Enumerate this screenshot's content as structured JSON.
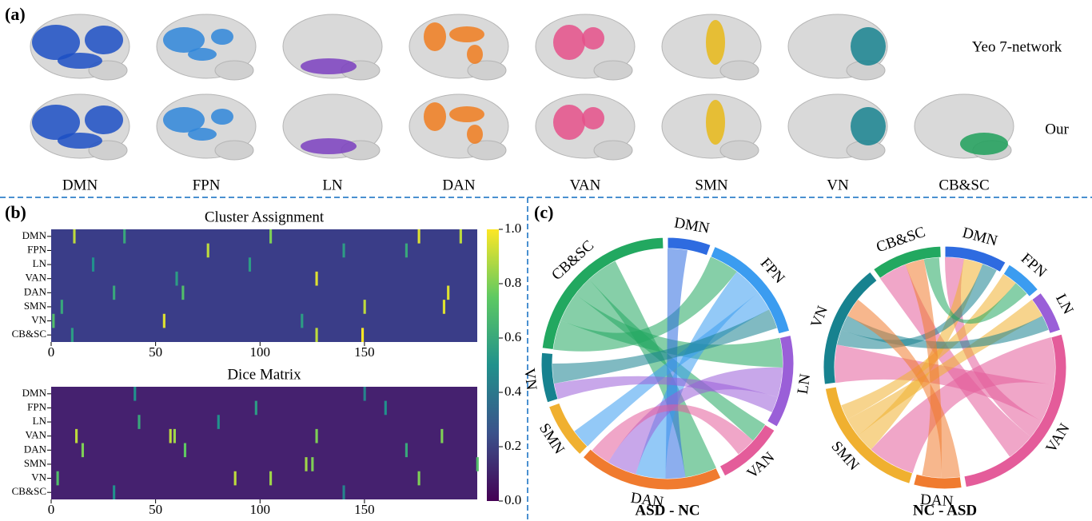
{
  "panel_a": {
    "label": "(a)",
    "rows": [
      "Yeo 7-network",
      "Our"
    ],
    "networks": [
      {
        "name": "DMN",
        "color": "#1c4fc4"
      },
      {
        "name": "FPN",
        "color": "#2f86d9"
      },
      {
        "name": "LN",
        "color": "#7b3fbf"
      },
      {
        "name": "DAN",
        "color": "#f07c1f"
      },
      {
        "name": "VAN",
        "color": "#e5508a"
      },
      {
        "name": "SMN",
        "color": "#e8b818"
      },
      {
        "name": "VN",
        "color": "#17828f"
      },
      {
        "name": "CB&SC",
        "color": "#1fa05a"
      }
    ]
  },
  "panel_b": {
    "label": "(b)",
    "heatmaps": [
      {
        "title": "Cluster Assignment",
        "rows": [
          "DMN",
          "FPN",
          "LN",
          "VAN",
          "DAN",
          "SMN",
          "VN",
          "CB&SC"
        ],
        "xlim": [
          0,
          204
        ],
        "xticks": [
          0,
          50,
          100,
          150
        ],
        "cells": [
          [
            0,
            11,
            0.9
          ],
          [
            0,
            105,
            0.8
          ],
          [
            0,
            176,
            0.95
          ],
          [
            0,
            196,
            0.9
          ],
          [
            0,
            35,
            0.6
          ],
          [
            1,
            75,
            0.9
          ],
          [
            1,
            170,
            0.6
          ],
          [
            1,
            140,
            0.55
          ],
          [
            2,
            20,
            0.5
          ],
          [
            2,
            95,
            0.55
          ],
          [
            3,
            127,
            0.95
          ],
          [
            3,
            60,
            0.55
          ],
          [
            4,
            63,
            0.7
          ],
          [
            4,
            190,
            0.95
          ],
          [
            4,
            30,
            0.6
          ],
          [
            5,
            150,
            0.9
          ],
          [
            5,
            188,
            0.95
          ],
          [
            5,
            5,
            0.6
          ],
          [
            6,
            54,
            0.95
          ],
          [
            6,
            1,
            0.7
          ],
          [
            6,
            120,
            0.55
          ],
          [
            7,
            127,
            0.9
          ],
          [
            7,
            149,
            1.0
          ],
          [
            7,
            10,
            0.55
          ]
        ]
      },
      {
        "title": "Dice Matrix",
        "rows": [
          "DMN",
          "FPN",
          "LN",
          "VAN",
          "DAN",
          "SMN",
          "VN",
          "CB&SC"
        ],
        "xlim": [
          0,
          204
        ],
        "xticks": [
          0,
          50,
          100,
          150
        ],
        "cells": [
          [
            0,
            40,
            0.5
          ],
          [
            0,
            150,
            0.45
          ],
          [
            1,
            98,
            0.55
          ],
          [
            1,
            160,
            0.5
          ],
          [
            2,
            42,
            0.6
          ],
          [
            2,
            80,
            0.5
          ],
          [
            3,
            12,
            0.9
          ],
          [
            3,
            57,
            0.9
          ],
          [
            3,
            59,
            0.85
          ],
          [
            3,
            127,
            0.8
          ],
          [
            3,
            187,
            0.8
          ],
          [
            4,
            15,
            0.8
          ],
          [
            4,
            64,
            0.75
          ],
          [
            4,
            170,
            0.6
          ],
          [
            5,
            122,
            0.85
          ],
          [
            5,
            125,
            0.8
          ],
          [
            5,
            204,
            0.7
          ],
          [
            6,
            105,
            0.85
          ],
          [
            6,
            176,
            0.8
          ],
          [
            6,
            88,
            0.9
          ],
          [
            6,
            3,
            0.7
          ],
          [
            7,
            30,
            0.5
          ],
          [
            7,
            140,
            0.45
          ]
        ]
      }
    ],
    "colorbar": {
      "lim": [
        0,
        1
      ],
      "ticks": [
        {
          "value": 0,
          "label": "0.0"
        },
        {
          "value": 0.2,
          "label": "0.2"
        },
        {
          "value": 0.4,
          "label": "0.4"
        },
        {
          "value": 0.6,
          "label": "0.6"
        },
        {
          "value": 0.8,
          "label": "0.8"
        },
        {
          "value": 1,
          "label": "1.0"
        }
      ]
    }
  },
  "panel_c": {
    "label": "(c)",
    "chords": [
      {
        "title": "ASD - NC",
        "segments": [
          {
            "name": "DMN",
            "color": "#2e6be0",
            "size": 20
          },
          {
            "name": "FPN",
            "color": "#3b9cf0",
            "size": 53
          },
          {
            "name": "LN",
            "color": "#9a5fd8",
            "size": 43
          },
          {
            "name": "VAN",
            "color": "#e45c9a",
            "size": 31
          },
          {
            "name": "DAN",
            "color": "#f07b2f",
            "size": 67
          },
          {
            "name": "SMN",
            "color": "#f0b030",
            "size": 26
          },
          {
            "name": "VN",
            "color": "#17828f",
            "size": 23
          },
          {
            "name": "CB&SC",
            "color": "#22a860",
            "size": 81
          }
        ],
        "ribbons": [
          [
            7,
            1,
            15
          ],
          [
            7,
            2,
            15
          ],
          [
            7,
            3,
            10
          ],
          [
            7,
            4,
            16
          ],
          [
            0,
            4,
            10
          ],
          [
            1,
            4,
            15
          ],
          [
            1,
            5,
            10
          ],
          [
            2,
            4,
            15
          ],
          [
            2,
            6,
            8
          ],
          [
            3,
            4,
            10
          ],
          [
            6,
            1,
            10
          ]
        ]
      },
      {
        "title": "NC - ASD",
        "segments": [
          {
            "name": "DMN",
            "color": "#2e6be0",
            "size": 30
          },
          {
            "name": "FPN",
            "color": "#3b9cf0",
            "size": 18
          },
          {
            "name": "LN",
            "color": "#9a5fd8",
            "size": 20
          },
          {
            "name": "VAN",
            "color": "#e45c9a",
            "size": 96
          },
          {
            "name": "DAN",
            "color": "#f07b2f",
            "size": 23
          },
          {
            "name": "SMN",
            "color": "#f0b030",
            "size": 63
          },
          {
            "name": "VN",
            "color": "#17828f",
            "size": 60
          },
          {
            "name": "CB&SC",
            "color": "#22a860",
            "size": 34
          }
        ],
        "ribbons": [
          [
            3,
            5,
            25
          ],
          [
            3,
            6,
            20
          ],
          [
            3,
            0,
            10
          ],
          [
            3,
            7,
            15
          ],
          [
            5,
            0,
            10
          ],
          [
            5,
            2,
            10
          ],
          [
            5,
            1,
            8
          ],
          [
            6,
            0,
            8
          ],
          [
            6,
            2,
            8
          ],
          [
            4,
            6,
            10
          ],
          [
            4,
            7,
            10
          ],
          [
            7,
            1,
            8
          ]
        ]
      }
    ]
  }
}
